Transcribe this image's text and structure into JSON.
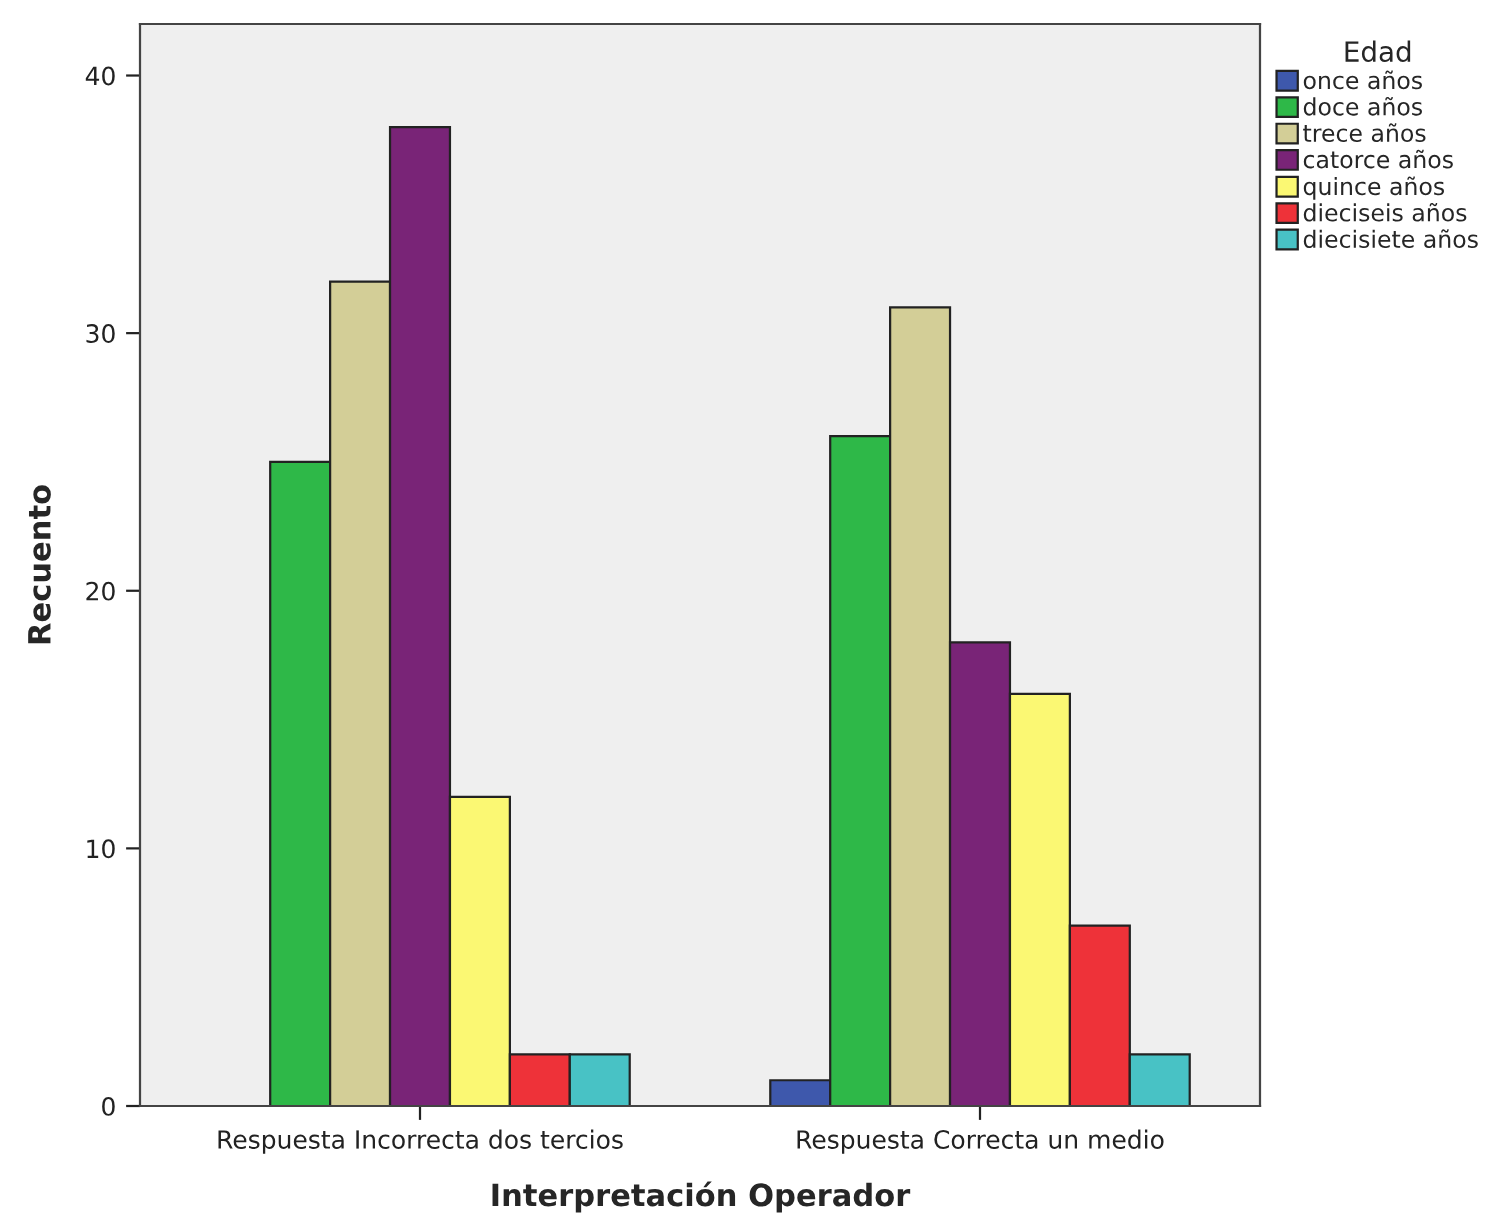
{
  "chart_data": {
    "type": "bar",
    "xlabel": "Interpretación Operador",
    "ylabel": "Recuento",
    "legend_title": "Edad",
    "categories": [
      "Respuesta Incorrecta dos tercios",
      "Respuesta Correcta un medio"
    ],
    "series": [
      {
        "name": "once años",
        "color": "#3e58ac",
        "values": [
          0,
          1
        ]
      },
      {
        "name": "doce años",
        "color": "#2eb848",
        "values": [
          25,
          26
        ]
      },
      {
        "name": "trece años",
        "color": "#d3ce97",
        "values": [
          32,
          31
        ]
      },
      {
        "name": "catorce años",
        "color": "#792477",
        "values": [
          38,
          18
        ]
      },
      {
        "name": "quince años",
        "color": "#fbf873",
        "values": [
          12,
          16
        ]
      },
      {
        "name": "dieciseis años",
        "color": "#ee3239",
        "values": [
          2,
          7
        ]
      },
      {
        "name": "diecisiete años",
        "color": "#48c2c5",
        "values": [
          2,
          2
        ]
      }
    ],
    "ylim": [
      0,
      42
    ],
    "yticks": [
      0,
      10,
      20,
      30,
      40
    ],
    "grid": false,
    "legend": "right"
  }
}
